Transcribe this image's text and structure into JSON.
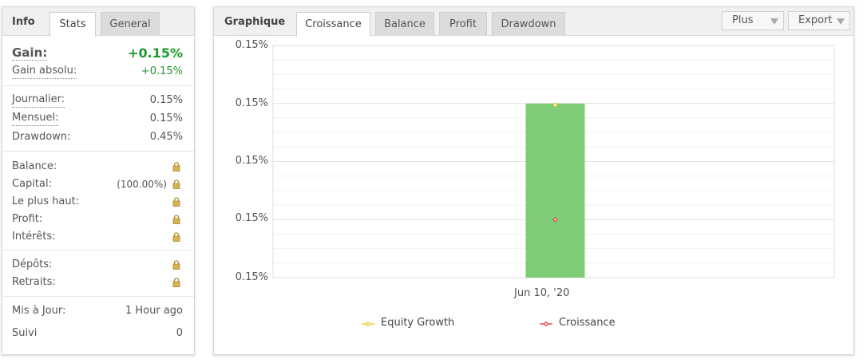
{
  "left_panel": {
    "title": "Info",
    "tabs": [
      {
        "label": "Stats"
      },
      {
        "label": "General"
      }
    ],
    "gain": {
      "label": "Gain:",
      "value": "+0.15%"
    },
    "gain_absolu": {
      "label": "Gain absolu:",
      "value": "+0.15%"
    },
    "journalier": {
      "label": "Journalier:",
      "value": "0.15%"
    },
    "mensuel": {
      "label": "Mensuel:",
      "value": "0.15%"
    },
    "drawdown": {
      "label": "Drawdown:",
      "value": "0.45%"
    },
    "balance": {
      "label": "Balance:"
    },
    "capital": {
      "label": "Capital:",
      "value": "(100.00%)"
    },
    "le_plus_haut": {
      "label": "Le plus haut:"
    },
    "profit": {
      "label": "Profit:"
    },
    "interets": {
      "label": "Intérêts:"
    },
    "depots": {
      "label": "Dépôts:"
    },
    "retraits": {
      "label": "Retraits:"
    },
    "mis_a_jour": {
      "label": "Mis à Jour:",
      "value": "1 Hour ago"
    },
    "suivi": {
      "label": "Suivi",
      "value": "0"
    },
    "lock_icon": "lock-icon"
  },
  "right_panel": {
    "title": "Graphique",
    "tabs": [
      {
        "label": "Croissance"
      },
      {
        "label": "Balance"
      },
      {
        "label": "Profit"
      },
      {
        "label": "Drawdown"
      }
    ],
    "buttons": {
      "plus": "Plus",
      "export": "Export"
    }
  },
  "colors": {
    "accent_green": "#1a9c2a",
    "bar_green": "#7fcc78",
    "equity": "#e8c21a",
    "croissance": "#e03a3a"
  },
  "chart_data": {
    "type": "bar",
    "categories": [
      "Jun 10, '20"
    ],
    "y_tick_labels": [
      "0.15%",
      "0.15%",
      "0.15%",
      "0.15%",
      "0.15%"
    ],
    "ylim": [
      0.1499,
      0.1501
    ],
    "bar_value": 0.15005,
    "series": [
      {
        "name": "Equity Growth",
        "values": [
          0.15005
        ],
        "color": "#e8c21a"
      },
      {
        "name": "Croissance",
        "values": [
          0.14995
        ],
        "color": "#e03a3a"
      }
    ],
    "legend_position": "bottom"
  }
}
